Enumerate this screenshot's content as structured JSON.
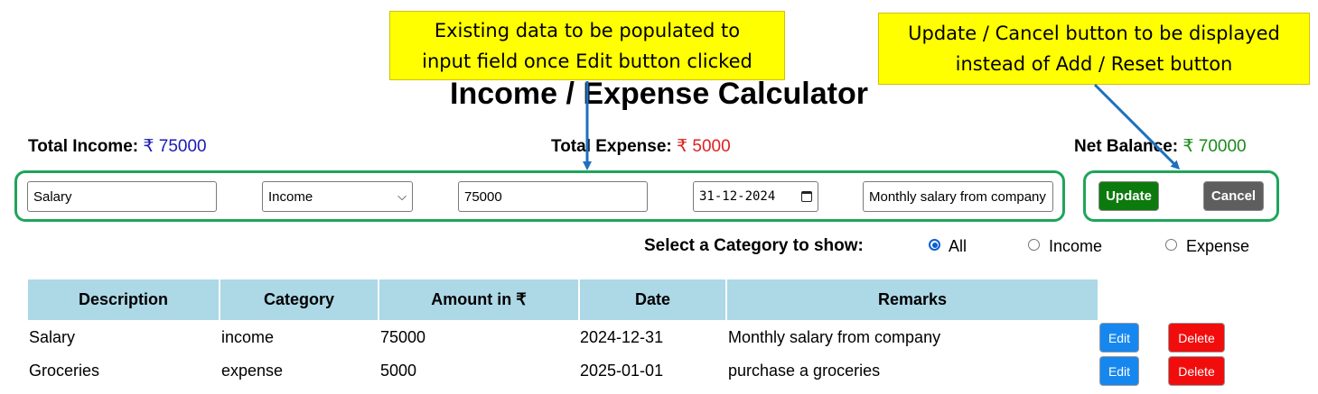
{
  "page_title": "Income / Expense Calculator",
  "totals": {
    "income_label": "Total Income:",
    "income_value": "₹ 75000",
    "expense_label": "Total Expense:",
    "expense_value": "₹ 5000",
    "net_label": "Net Balance:",
    "net_value": "₹ 70000",
    "colors": {
      "income": "#1a1ab3",
      "expense": "#e02020",
      "net": "#1a8a1a"
    }
  },
  "form": {
    "description_value": "Salary",
    "category_selected": "Income",
    "amount_value": "75000",
    "date_value": "31-12-2024",
    "remarks_value": "Monthly salary from company",
    "update_label": "Update",
    "cancel_label": "Cancel"
  },
  "filter": {
    "label": "Select a Category to show:",
    "options": [
      "All",
      "Income",
      "Expense"
    ],
    "selected": "All"
  },
  "table": {
    "headers": [
      "Description",
      "Category",
      "Amount in ₹",
      "Date",
      "Remarks"
    ],
    "rows": [
      {
        "description": "Salary",
        "category": "income",
        "amount": "75000",
        "date": "2024-12-31",
        "remarks": "Monthly salary from company",
        "edit": "Edit",
        "delete": "Delete"
      },
      {
        "description": "Groceries",
        "category": "expense",
        "amount": "5000",
        "date": "2025-01-01",
        "remarks": "purchase a groceries",
        "edit": "Edit",
        "delete": "Delete"
      }
    ]
  },
  "annotations": {
    "callout_left_line1": "Existing data to be populated to",
    "callout_left_line2": "input field once Edit button clicked",
    "callout_right_line1": "Update / Cancel button to be displayed",
    "callout_right_line2": "instead of Add / Reset button",
    "callout_color": "#ffff00",
    "frame_color": "#1ea55a",
    "arrow_color": "#1f6fbf"
  }
}
